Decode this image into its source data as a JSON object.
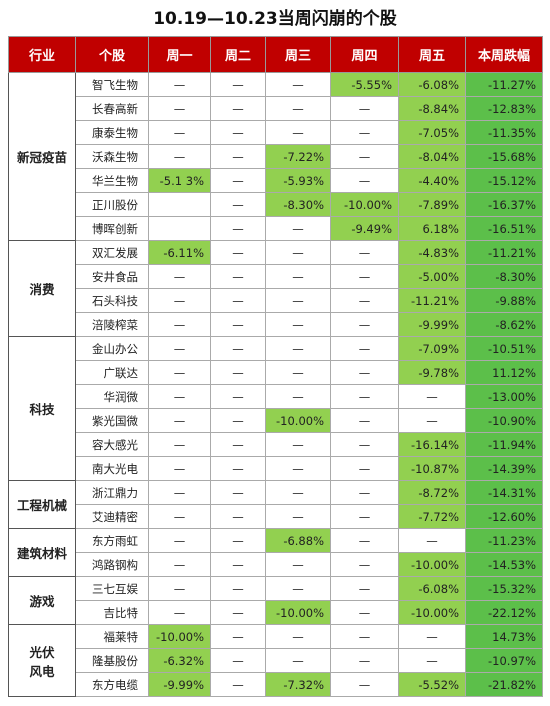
{
  "title": "10.19—10.23当周闪崩的个股",
  "table": {
    "header": [
      "行业",
      "个股",
      "周一",
      "周二",
      "周三",
      "周四",
      "周五",
      "本周跌幅"
    ],
    "groups": [
      {
        "industry": "新冠疫苗",
        "rows": [
          {
            "stock": "智飞生物",
            "cells": [
              "—",
              "—",
              "—",
              "-5.55%",
              "-6.08%",
              "-11.27%"
            ]
          },
          {
            "stock": "长春高新",
            "cells": [
              "—",
              "—",
              "—",
              "—",
              "-8.84%",
              "-12.83%"
            ]
          },
          {
            "stock": "康泰生物",
            "cells": [
              "—",
              "—",
              "—",
              "—",
              "-7.05%",
              "-11.35%"
            ]
          },
          {
            "stock": "沃森生物",
            "cells": [
              "—",
              "—",
              "-7.22%",
              "—",
              "-8.04%",
              "-15.68%"
            ]
          },
          {
            "stock": "华兰生物",
            "cells": [
              "-5.1 3%",
              "—",
              "-5.93%",
              "—",
              "-4.40%",
              "-15.12%"
            ]
          },
          {
            "stock": "正川股份",
            "cells": [
              null,
              "—",
              "-8.30%",
              "-10.00%",
              "-7.89%",
              "-16.37%"
            ]
          },
          {
            "stock": "博晖创新",
            "cells": [
              null,
              "—",
              "—",
              "-9.49%",
              "6.18%",
              "-16.51%"
            ]
          }
        ]
      },
      {
        "industry": "消费",
        "rows": [
          {
            "stock": "双汇发展",
            "cells": [
              "-6.11%",
              "—",
              "—",
              "—",
              "-4.83%",
              "-11.21%"
            ]
          },
          {
            "stock": "安井食品",
            "cells": [
              "—",
              "—",
              "—",
              "—",
              "-5.00%",
              "-8.30%"
            ]
          },
          {
            "stock": "石头科技",
            "cells": [
              "—",
              "—",
              "—",
              "—",
              "-11.21%",
              "-9.88%"
            ]
          },
          {
            "stock": "涪陵榨菜",
            "cells": [
              "—",
              "—",
              "—",
              "—",
              "-9.99%",
              "-8.62%"
            ]
          }
        ]
      },
      {
        "industry": "科技",
        "rows": [
          {
            "stock": "金山办公",
            "cells": [
              "—",
              "—",
              "—",
              "—",
              "-7.09%",
              "-10.51%"
            ]
          },
          {
            "stock": "广联达",
            "cells": [
              "—",
              "—",
              "—",
              "—",
              "-9.78%",
              "11.12%"
            ]
          },
          {
            "stock": "华润微",
            "cells": [
              "—",
              "—",
              "—",
              "—",
              "—",
              "-13.00%"
            ]
          },
          {
            "stock": "紫光国微",
            "cells": [
              "—",
              "—",
              "-10.00%",
              "—",
              "—",
              "-10.90%"
            ]
          },
          {
            "stock": "容大感光",
            "cells": [
              "—",
              "—",
              "—",
              "—",
              "-16.14%",
              "-11.94%"
            ]
          },
          {
            "stock": "南大光电",
            "cells": [
              "—",
              "—",
              "—",
              "—",
              "-10.87%",
              "-14.39%"
            ]
          }
        ]
      },
      {
        "industry": "工程机械",
        "rows": [
          {
            "stock": "浙江鼎力",
            "cells": [
              "—",
              "—",
              "—",
              "—",
              "-8.72%",
              "-14.31%"
            ]
          },
          {
            "stock": "艾迪精密",
            "cells": [
              "—",
              "—",
              "—",
              "—",
              "-7.72%",
              "-12.60%"
            ]
          }
        ]
      },
      {
        "industry": "建筑材料",
        "rows": [
          {
            "stock": "东方雨虹",
            "cells": [
              "—",
              "—",
              "-6.88%",
              "—",
              "—",
              "-11.23%"
            ]
          },
          {
            "stock": "鸿路钢构",
            "cells": [
              "—",
              "—",
              "—",
              "—",
              "-10.00%",
              "-14.53%"
            ]
          }
        ]
      },
      {
        "industry": "游戏",
        "rows": [
          {
            "stock": "三七互娱",
            "cells": [
              "—",
              "—",
              "—",
              "—",
              "-6.08%",
              "-15.32%"
            ]
          },
          {
            "stock": "吉比特",
            "cells": [
              "—",
              "—",
              "-10.00%",
              "—",
              "-10.00%",
              "-22.12%"
            ]
          }
        ]
      },
      {
        "industry": "光伏\n风电",
        "rows": [
          {
            "stock": "福莱特",
            "cells": [
              "-10.00%",
              "—",
              "—",
              "—",
              "—",
              "14.73%"
            ]
          },
          {
            "stock": "隆基股份",
            "cells": [
              "-6.32%",
              "—",
              "—",
              "—",
              "—",
              "-10.97%"
            ]
          },
          {
            "stock": "东方电缆",
            "cells": [
              "-9.99%",
              "—",
              "-7.32%",
              "—",
              "-5.52%",
              "-21.82%"
            ]
          }
        ]
      }
    ]
  }
}
